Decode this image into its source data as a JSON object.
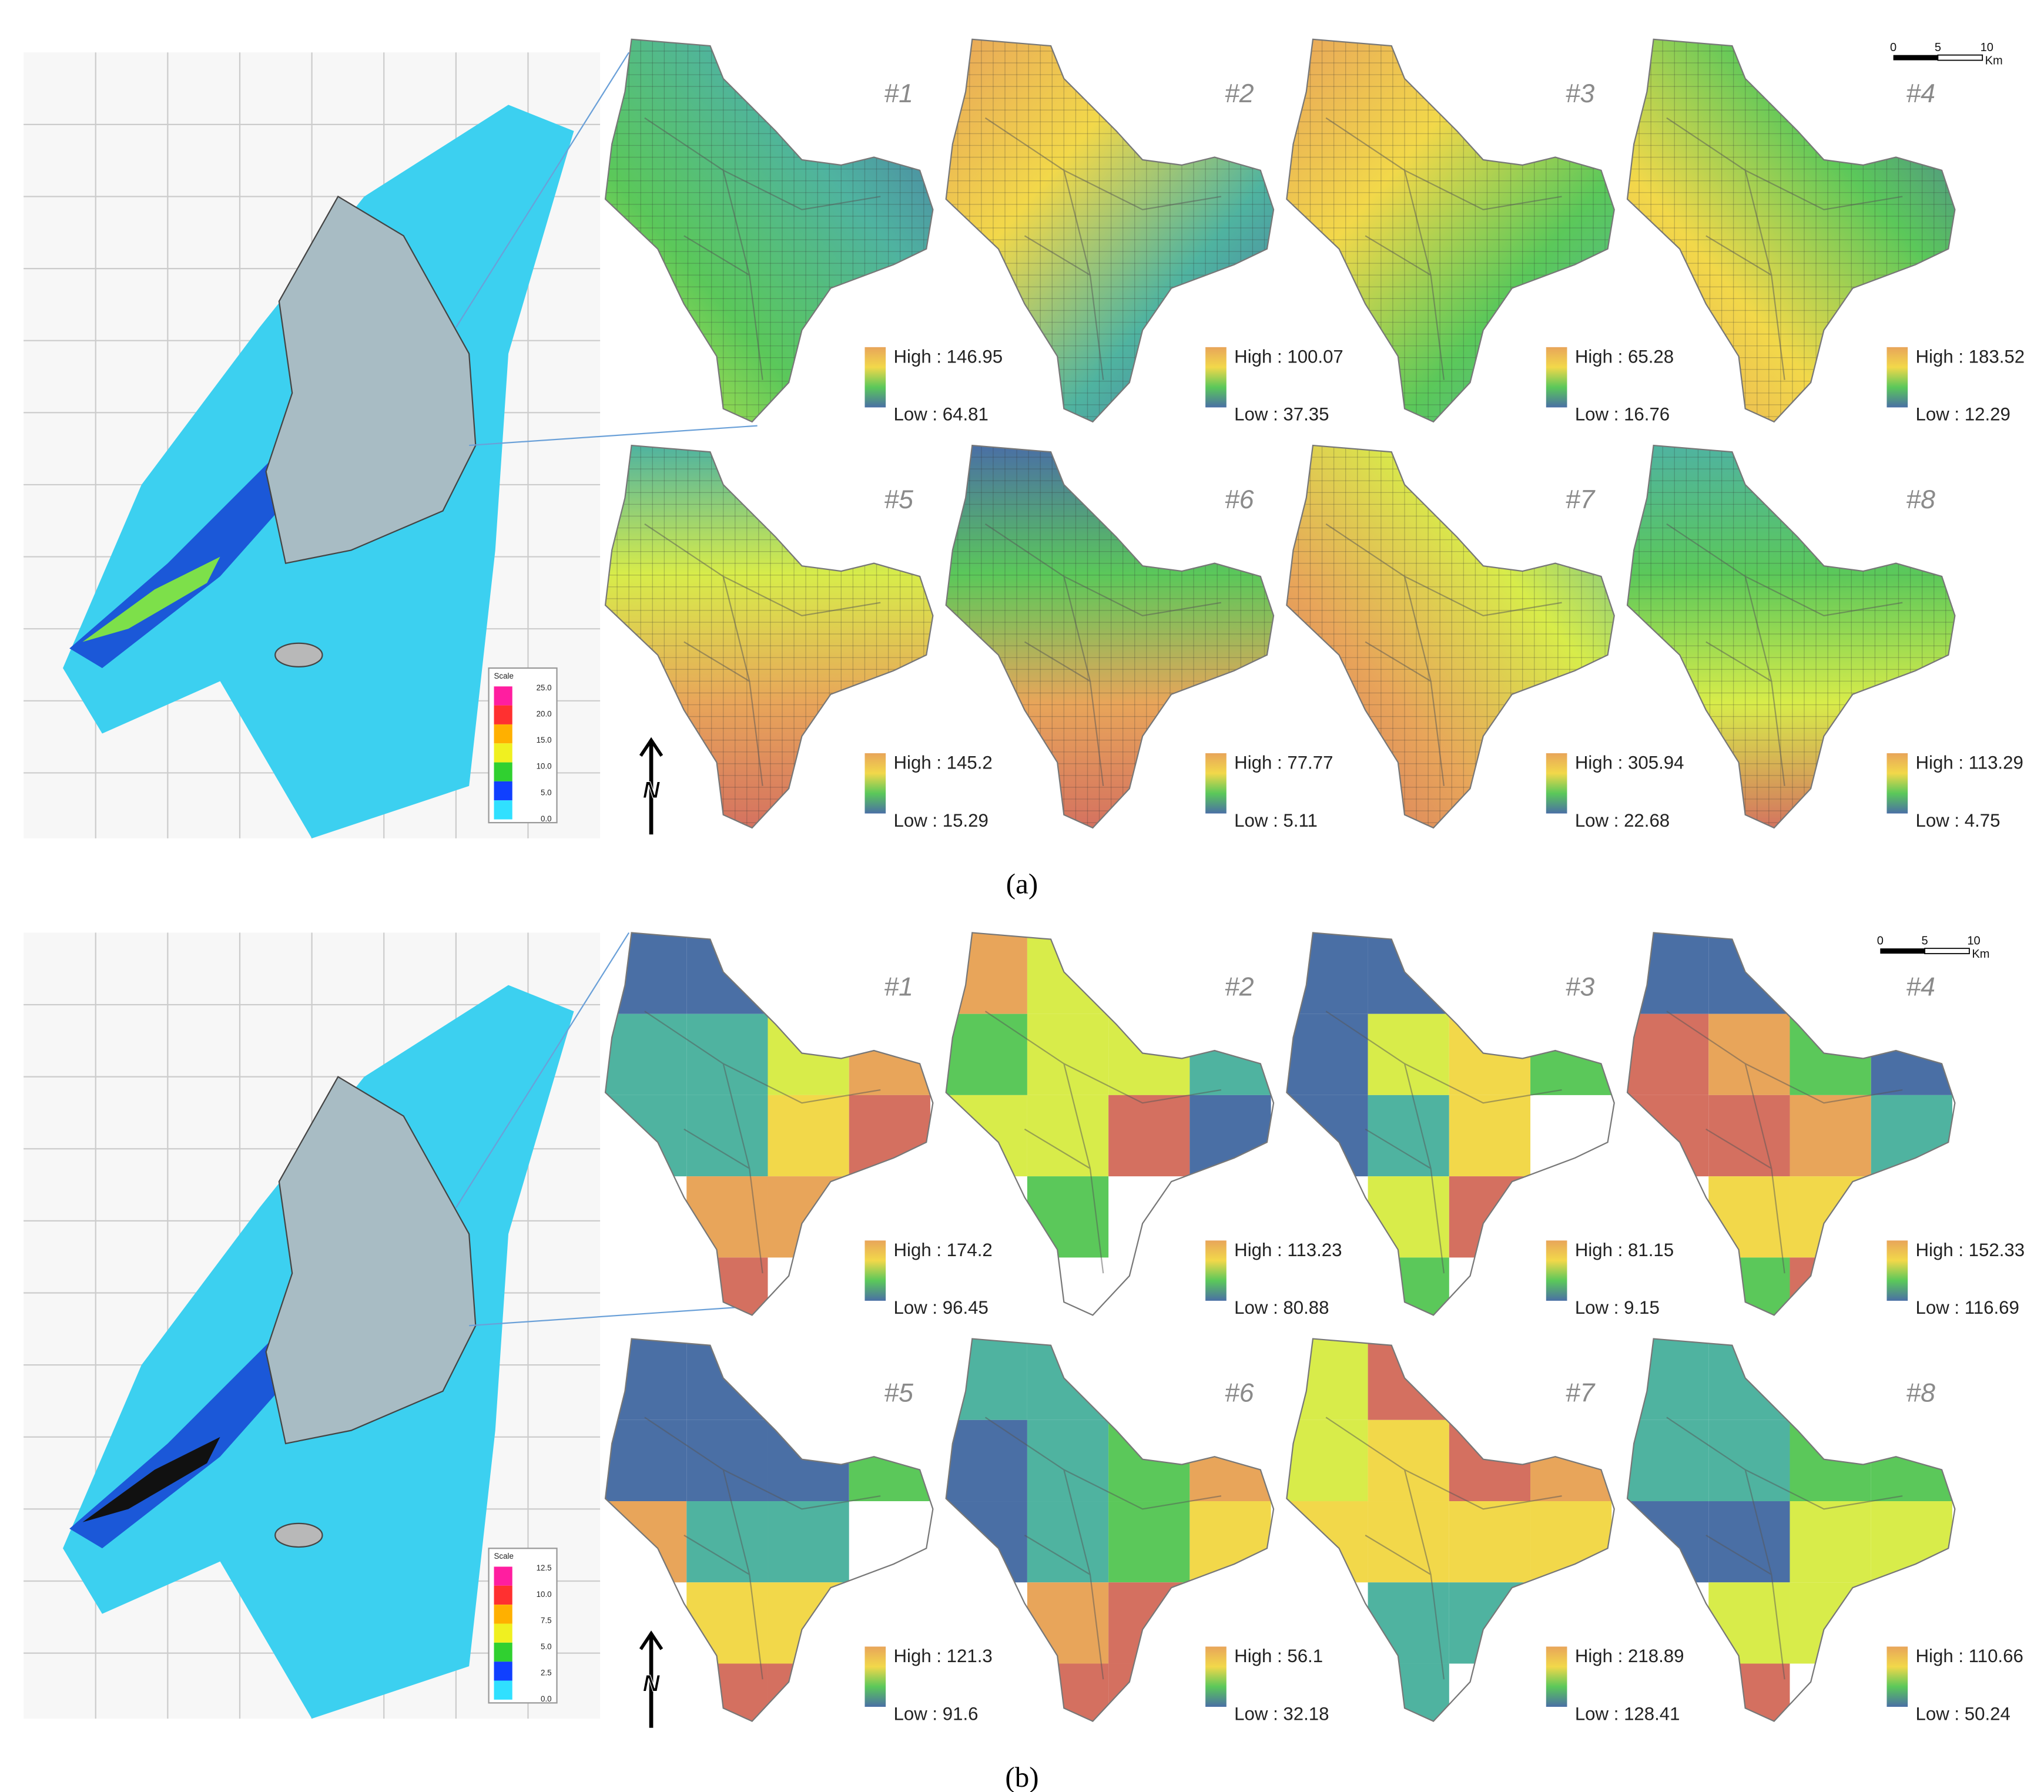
{
  "panels": [
    {
      "caption": "(a)",
      "radar": {
        "scale_title": "Scale",
        "scale_labels": [
          "25.0",
          "20.0",
          "15.0",
          "10.0",
          "5.0",
          "0.0"
        ]
      },
      "scale_bar": {
        "ticks": [
          "0",
          "5",
          "10"
        ],
        "unit": "Km"
      },
      "north": "N",
      "maps": [
        {
          "label": "#1",
          "high": "High : 146.95",
          "low": "Low : 64.81"
        },
        {
          "label": "#2",
          "high": "High : 100.07",
          "low": "Low : 37.35"
        },
        {
          "label": "#3",
          "high": "High : 65.28",
          "low": "Low : 16.76"
        },
        {
          "label": "#4",
          "high": "High : 183.52",
          "low": "Low : 12.29"
        },
        {
          "label": "#5",
          "high": "High : 145.2",
          "low": "Low : 15.29"
        },
        {
          "label": "#6",
          "high": "High : 77.77",
          "low": "Low : 5.11"
        },
        {
          "label": "#7",
          "high": "High : 305.94",
          "low": "Low : 22.68"
        },
        {
          "label": "#8",
          "high": "High : 113.29",
          "low": "Low : 4.75"
        }
      ]
    },
    {
      "caption": "(b)",
      "radar": {
        "scale_title": "Scale",
        "scale_labels": [
          "12.5",
          "10.0",
          "7.5",
          "5.0",
          "2.5",
          "0.0"
        ]
      },
      "scale_bar": {
        "ticks": [
          "0",
          "5",
          "10"
        ],
        "unit": "Km"
      },
      "north": "N",
      "maps": [
        {
          "label": "#1",
          "high": "High : 174.2",
          "low": "Low : 96.45"
        },
        {
          "label": "#2",
          "high": "High : 113.23",
          "low": "Low : 80.88"
        },
        {
          "label": "#3",
          "high": "High : 81.15",
          "low": "Low : 9.15"
        },
        {
          "label": "#4",
          "high": "High : 152.33",
          "low": "Low : 116.69"
        },
        {
          "label": "#5",
          "high": "High : 121.3",
          "low": "Low : 91.6"
        },
        {
          "label": "#6",
          "high": "High : 56.1",
          "low": "Low : 32.18"
        },
        {
          "label": "#7",
          "high": "High : 218.89",
          "low": "Low : 128.41"
        },
        {
          "label": "#8",
          "high": "High : 110.66",
          "low": "Low : 50.24"
        }
      ]
    }
  ]
}
